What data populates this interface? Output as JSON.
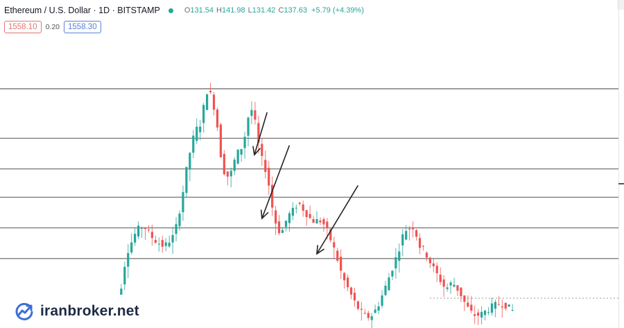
{
  "header": {
    "symbol_title": "Ethereum / U.S. Dollar · 1D · BITSTAMP",
    "open_label": "O",
    "open_value": "131.54",
    "high_label": "H",
    "high_value": "141.98",
    "low_label": "L",
    "low_value": "131.42",
    "close_label": "C",
    "close_value": "137.63",
    "change": "+5.79 (+4.39%)",
    "live_dot_color": "#26a69a"
  },
  "quotes": {
    "sell": "1558.10",
    "spread": "0.20",
    "buy": "1558.30"
  },
  "watermark": {
    "text": "iranbroker.net",
    "icon": "trend-line-logo-icon"
  },
  "colors": {
    "up": "#26a69a",
    "down": "#ef5350",
    "level_line": "#7d7d7d",
    "arrow": "#222222"
  },
  "chart_data": {
    "type": "candlestick",
    "title": "Ethereum / U.S. Dollar · 1D · BITSTAMP",
    "grid": false,
    "y_axis": "hidden",
    "price_path": [
      [
        0,
        0.05
      ],
      [
        3,
        0.12
      ],
      [
        5,
        0.3
      ],
      [
        8,
        0.4
      ],
      [
        10,
        0.42
      ],
      [
        13,
        0.36
      ],
      [
        16,
        0.33
      ],
      [
        19,
        0.38
      ],
      [
        21,
        0.52
      ],
      [
        23,
        0.7
      ],
      [
        25,
        0.82
      ],
      [
        27,
        0.86
      ],
      [
        28,
        0.98
      ],
      [
        29,
        1.0
      ],
      [
        31,
        0.9
      ],
      [
        33,
        0.66
      ],
      [
        35,
        0.62
      ],
      [
        37,
        0.72
      ],
      [
        39,
        0.76
      ],
      [
        41,
        0.92
      ],
      [
        42,
        0.9
      ],
      [
        44,
        0.72
      ],
      [
        46,
        0.64
      ],
      [
        48,
        0.45
      ],
      [
        50,
        0.38
      ],
      [
        52,
        0.46
      ],
      [
        54,
        0.49
      ],
      [
        55,
        0.52
      ],
      [
        57,
        0.48
      ],
      [
        59,
        0.44
      ],
      [
        62,
        0.44
      ],
      [
        64,
        0.38
      ],
      [
        66,
        0.3
      ],
      [
        68,
        0.2
      ],
      [
        70,
        0.14
      ],
      [
        72,
        0.08
      ],
      [
        74,
        0.04
      ],
      [
        76,
        0.03
      ],
      [
        78,
        0.07
      ],
      [
        80,
        0.14
      ],
      [
        82,
        0.22
      ],
      [
        84,
        0.3
      ],
      [
        86,
        0.4
      ],
      [
        88,
        0.41
      ],
      [
        89,
        0.42
      ],
      [
        90,
        0.34
      ],
      [
        92,
        0.31
      ],
      [
        94,
        0.25
      ],
      [
        96,
        0.2
      ],
      [
        98,
        0.15
      ],
      [
        100,
        0.18
      ],
      [
        102,
        0.14
      ],
      [
        104,
        0.08
      ],
      [
        106,
        0.04
      ],
      [
        108,
        0.04
      ],
      [
        110,
        0.06
      ],
      [
        112,
        0.08
      ],
      [
        114,
        0.09
      ],
      [
        116,
        0.08
      ],
      [
        117,
        0.06
      ]
    ],
    "levels": [
      {
        "name": "level-1",
        "y": 1.0
      },
      {
        "name": "level-2",
        "y": 0.79
      },
      {
        "name": "level-3",
        "y": 0.66
      },
      {
        "name": "level-4",
        "y": 0.54
      },
      {
        "name": "level-5",
        "y": 0.41
      },
      {
        "name": "level-6",
        "y": 0.28
      }
    ],
    "arrows": [
      {
        "name": "arrow-1",
        "from": [
          45.5,
          0.9
        ],
        "to": [
          41.8,
          0.72
        ]
      },
      {
        "name": "arrow-2",
        "from": [
          52.0,
          0.76
        ],
        "to": [
          44.0,
          0.45
        ]
      },
      {
        "name": "arrow-3",
        "from": [
          72.0,
          0.59
        ],
        "to": [
          60.0,
          0.3
        ]
      }
    ]
  }
}
